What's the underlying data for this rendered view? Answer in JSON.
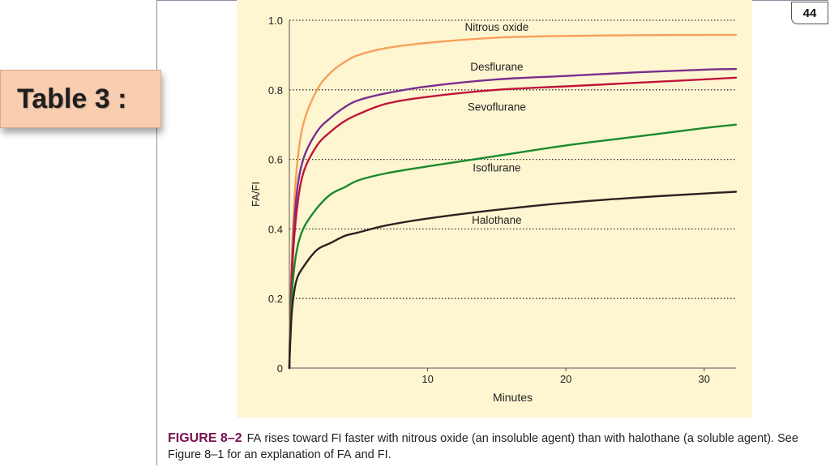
{
  "slide": {
    "page_number": "44",
    "table_label": "Table 3 :"
  },
  "caption": {
    "label": "FIGURE 8–2",
    "fa": "FA",
    "part1": " rises toward ",
    "fi": "FI",
    "part2": " faster with nitrous oxide (an insoluble agent) than with halothane (a soluble agent). See Figure 8–1 for an explanation of ",
    "fa2": "FA",
    "part3": " and ",
    "fi2": "FI",
    "part4": "."
  },
  "colors": {
    "panel_bg": "#fef6d1",
    "nitrous": "#f7a05a",
    "desflurane": "#7a2e8e",
    "sevoflurane": "#c0143c",
    "isoflurane": "#1b8a2e",
    "halothane": "#2b2222"
  },
  "chart_data": {
    "type": "line",
    "title": "",
    "xlabel": "Minutes",
    "ylabel": "FA/FI",
    "xlim": [
      0,
      32.3
    ],
    "ylim": [
      0,
      1.0
    ],
    "x_ticks": [
      10,
      20,
      30
    ],
    "y_ticks": [
      0,
      0.2,
      0.4,
      0.6,
      0.8,
      1.0
    ],
    "y_tick_labels": [
      "0",
      "0.2",
      "0.4",
      "0.6",
      "0.8",
      "1.0"
    ],
    "grid": "horizontal dotted",
    "series": [
      {
        "name": "Nitrous oxide",
        "x": [
          0,
          0.05,
          0.2,
          0.5,
          1,
          2,
          3,
          4,
          5,
          7,
          10,
          15,
          20,
          25,
          30,
          32.3
        ],
        "y": [
          0,
          0.12,
          0.35,
          0.56,
          0.7,
          0.8,
          0.85,
          0.88,
          0.9,
          0.92,
          0.935,
          0.95,
          0.955,
          0.957,
          0.958,
          0.958
        ]
      },
      {
        "name": "Desflurane",
        "x": [
          0,
          0.05,
          0.2,
          0.5,
          1,
          2,
          3,
          4,
          5,
          7,
          10,
          15,
          20,
          25,
          30,
          32.3
        ],
        "y": [
          0,
          0.1,
          0.3,
          0.49,
          0.6,
          0.68,
          0.72,
          0.75,
          0.77,
          0.79,
          0.81,
          0.83,
          0.84,
          0.85,
          0.858,
          0.86
        ]
      },
      {
        "name": "Sevoflurane",
        "x": [
          0,
          0.05,
          0.2,
          0.5,
          1,
          2,
          3,
          4,
          5,
          7,
          10,
          15,
          20,
          25,
          30,
          32.3
        ],
        "y": [
          0,
          0.1,
          0.28,
          0.44,
          0.56,
          0.64,
          0.68,
          0.71,
          0.73,
          0.76,
          0.78,
          0.8,
          0.81,
          0.82,
          0.83,
          0.835
        ]
      },
      {
        "name": "Isoflurane",
        "x": [
          0,
          0.05,
          0.2,
          0.5,
          1,
          2,
          3,
          4,
          5,
          7,
          10,
          15,
          20,
          25,
          30,
          32.3
        ],
        "y": [
          0,
          0.08,
          0.22,
          0.33,
          0.4,
          0.46,
          0.5,
          0.52,
          0.54,
          0.56,
          0.58,
          0.61,
          0.64,
          0.665,
          0.69,
          0.7
        ]
      },
      {
        "name": "Halothane",
        "x": [
          0,
          0.05,
          0.2,
          0.5,
          1,
          2,
          3,
          4,
          5,
          7,
          10,
          15,
          20,
          25,
          30,
          32.3
        ],
        "y": [
          0,
          0.06,
          0.17,
          0.25,
          0.29,
          0.34,
          0.36,
          0.38,
          0.39,
          0.41,
          0.43,
          0.455,
          0.475,
          0.49,
          0.502,
          0.507
        ]
      }
    ],
    "annotations": [
      {
        "series": "Nitrous oxide",
        "text": "Nitrous oxide",
        "x": 15,
        "y": 0.97
      },
      {
        "series": "Desflurane",
        "text": "Desflurane",
        "x": 15,
        "y": 0.855
      },
      {
        "series": "Sevoflurane",
        "text": "Sevoflurane",
        "x": 15,
        "y": 0.74
      },
      {
        "series": "Isoflurane",
        "text": "Isoflurane",
        "x": 15,
        "y": 0.565
      },
      {
        "series": "Halothane",
        "text": "Halothane",
        "x": 15,
        "y": 0.415
      }
    ]
  }
}
